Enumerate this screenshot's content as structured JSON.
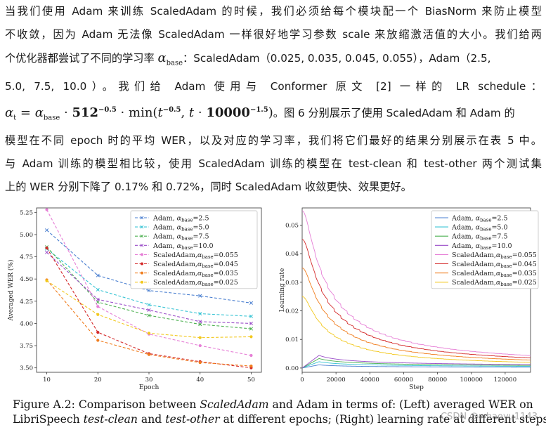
{
  "paragraph": {
    "line1": "当我们使用 Adam 来训练 ScaledAdam 的时候，我们必须给每个模块配一个 BiasNorm 来防止模型",
    "line2": "不收敛，因为 Adam 无法像 ScaledAdam 一样很好地学习参数 scale 来放缩激活值的大小。我们给两",
    "line3_pre": "个优化器都尝试了不同的学习率",
    "line3_post": "：ScaledAdam（0.025, 0.035, 0.045, 0.055），Adam（2.5,",
    "line4": "5.0, 7.5, 10.0）。我们给 Adam 使用与 Conformer 原文 [2] 一样的 LR schedule：",
    "line5_post": "。图 6 分别展示了使用 ScaledAdam 和 Adam 的",
    "line6": "模型在不同 epoch 时的平均 WER，以及对应的学习率，我们将它们最好的结果分别展示在表 5 中。",
    "line7": "与 Adam 训练的模型相比较，使用 ScaledAdam 训练的模型在 test-clean 和 test-other 两个测试集",
    "line8": "上的 WER 分别下降了 0.17% 和 0.72%，同时 ScaledAdam 收敛更快、效果更好。"
  },
  "math": {
    "alpha": "α",
    "base": "base",
    "t": "t",
    "eq": " = ",
    "dot": " · ",
    "n512": "512",
    "exp1": "−0.5",
    "min": "min(",
    "exp2": "−0.5",
    "comma": ", ",
    "n10000": "10000",
    "exp3": "−1.5",
    "close": ")"
  },
  "caption": {
    "p1": "Figure A.2: Comparison between ",
    "p1_em": "ScaledAdam",
    "p1_rest": " and Adam in terms of: (Left) averaged WER on",
    "p2": "LibriSpeech ",
    "p2_em1": "test-clean",
    "p2_mid": " and ",
    "p2_em2": "test-other",
    "p2_rest": " at different epochs; (Right) learning rate at different steps."
  },
  "watermark": "CSDN @whaoyu1143",
  "colors": {
    "adam_2.5": "#4a7fd0",
    "adam_5.0": "#38c4d4",
    "adam_7.5": "#4cb050",
    "adam_10.0": "#9a4cc8",
    "scaled_0.055": "#e67fd6",
    "scaled_0.045": "#d42a2a",
    "scaled_0.035": "#f07d1e",
    "scaled_0.025": "#f2c81e"
  },
  "chart_data": [
    {
      "type": "line",
      "xlabel": "Epoch",
      "ylabel": "Averaged WER (%)",
      "x": [
        10,
        20,
        30,
        40,
        50
      ],
      "xlim": [
        8,
        52
      ],
      "ylim": [
        3.45,
        5.3
      ],
      "xticks": [
        "10",
        "20",
        "30",
        "40",
        "50"
      ],
      "yticks": [
        "3.50",
        "3.75",
        "4.00",
        "4.25",
        "4.50",
        "4.75",
        "5.00",
        "5.25"
      ],
      "legend": "top-right",
      "series": [
        {
          "name": "Adam, α_base=2.5",
          "key": "adam_2.5",
          "values": [
            5.05,
            4.54,
            4.37,
            4.31,
            4.23
          ]
        },
        {
          "name": "Adam, α_base=5.0",
          "key": "adam_5.0",
          "values": [
            4.84,
            4.38,
            4.21,
            4.11,
            4.08
          ]
        },
        {
          "name": "Adam, α_base=7.5",
          "key": "adam_7.5",
          "values": [
            4.86,
            4.24,
            4.09,
            3.99,
            3.94
          ]
        },
        {
          "name": "Adam, α_base=10.0",
          "key": "adam_10.0",
          "values": [
            4.8,
            4.27,
            4.15,
            4.02,
            4.0
          ]
        },
        {
          "name": "ScaledAdam,α_base=0.055",
          "key": "scaled_0.055",
          "values": [
            5.28,
            4.19,
            3.88,
            3.75,
            3.64
          ]
        },
        {
          "name": "ScaledAdam,α_base=0.045",
          "key": "scaled_0.045",
          "values": [
            4.85,
            3.9,
            3.66,
            3.57,
            3.5
          ]
        },
        {
          "name": "ScaledAdam,α_base=0.035",
          "key": "scaled_0.035",
          "values": [
            4.49,
            3.81,
            3.65,
            3.56,
            3.52
          ]
        },
        {
          "name": "ScaledAdam,α_base=0.025",
          "key": "scaled_0.025",
          "values": [
            4.48,
            4.1,
            3.89,
            3.84,
            3.85
          ]
        }
      ]
    },
    {
      "type": "line",
      "xlabel": "Step",
      "ylabel": "Learning rate",
      "xlim": [
        0,
        135000
      ],
      "ylim": [
        -0.0015,
        0.056
      ],
      "xticks": [
        "0",
        "20000",
        "40000",
        "60000",
        "80000",
        "100000",
        "120000"
      ],
      "yticks": [
        "0.00",
        "0.01",
        "0.02",
        "0.03",
        "0.04",
        "0.05"
      ],
      "legend": "top-right",
      "series": [
        {
          "name": "Adam, α_base=2.5",
          "key": "adam_2.5",
          "kind": "conformer",
          "alpha": 2.5
        },
        {
          "name": "Adam, α_base=5.0",
          "key": "adam_5.0",
          "kind": "conformer",
          "alpha": 5.0
        },
        {
          "name": "Adam, α_base=7.5",
          "key": "adam_7.5",
          "kind": "conformer",
          "alpha": 7.5
        },
        {
          "name": "Adam, α_base=10.0",
          "key": "adam_10.0",
          "kind": "conformer",
          "alpha": 10.0
        },
        {
          "name": "ScaledAdam,α_base=0.055",
          "key": "scaled_0.055",
          "kind": "eden",
          "alpha": 0.055
        },
        {
          "name": "ScaledAdam,α_base=0.045",
          "key": "scaled_0.045",
          "kind": "eden",
          "alpha": 0.045
        },
        {
          "name": "ScaledAdam,α_base=0.035",
          "key": "scaled_0.035",
          "kind": "eden",
          "alpha": 0.035
        },
        {
          "name": "ScaledAdam,α_base=0.025",
          "key": "scaled_0.025",
          "kind": "eden",
          "alpha": 0.025
        }
      ]
    }
  ]
}
